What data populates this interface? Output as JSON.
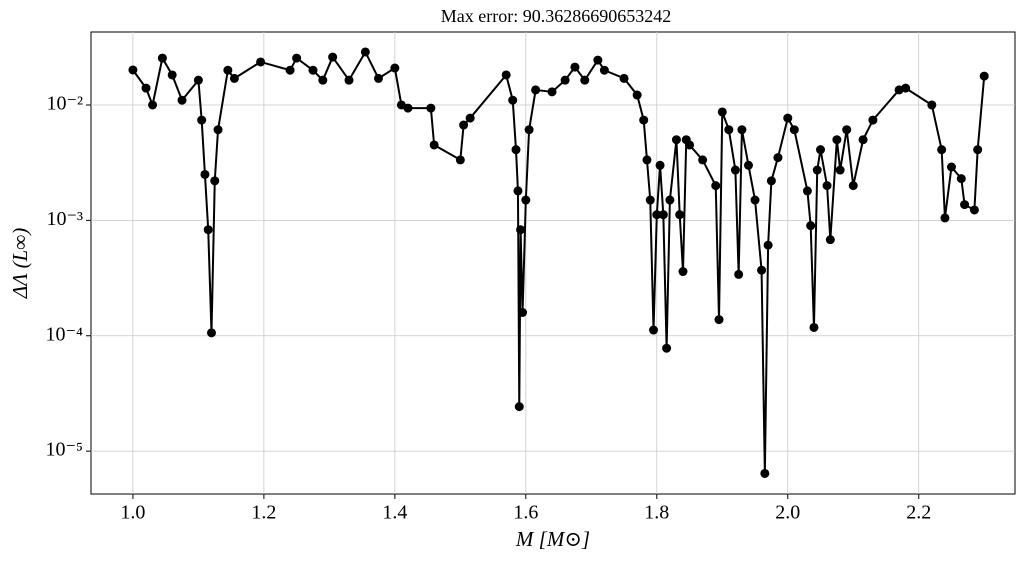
{
  "chart_data": {
    "type": "line",
    "title": "Max error: 90.36286690653242",
    "xlabel": "M [M⊙]",
    "ylabel": "ΔΛ (L∞)",
    "log_y": true,
    "grid": true,
    "color": "#000000",
    "markers": true,
    "xlim": [
      0.936,
      2.347
    ],
    "ylim": [
      4.25e-06,
      0.0429
    ],
    "xticks": [
      {
        "value": 1.0,
        "label": "1.0"
      },
      {
        "value": 1.2,
        "label": "1.2"
      },
      {
        "value": 1.4,
        "label": "1.4"
      },
      {
        "value": 1.6,
        "label": "1.6"
      },
      {
        "value": 1.8,
        "label": "1.8"
      },
      {
        "value": 2.0,
        "label": "2.0"
      },
      {
        "value": 2.2,
        "label": "2.2"
      }
    ],
    "yticks": [
      {
        "value": 1e-05,
        "label": "10⁻⁵"
      },
      {
        "value": 0.0001,
        "label": "10⁻⁴"
      },
      {
        "value": 0.001,
        "label": "10⁻³"
      },
      {
        "value": 0.01,
        "label": "10⁻²"
      }
    ],
    "x": [
      1.0,
      1.02,
      1.03,
      1.045,
      1.06,
      1.075,
      1.1,
      1.105,
      1.11,
      1.115,
      1.12,
      1.125,
      1.13,
      1.145,
      1.155,
      1.195,
      1.24,
      1.25,
      1.275,
      1.29,
      1.305,
      1.33,
      1.355,
      1.375,
      1.4,
      1.41,
      1.42,
      1.455,
      1.46,
      1.5,
      1.505,
      1.515,
      1.57,
      1.58,
      1.585,
      1.588,
      1.59,
      1.592,
      1.595,
      1.6,
      1.605,
      1.615,
      1.64,
      1.66,
      1.675,
      1.69,
      1.71,
      1.72,
      1.75,
      1.77,
      1.78,
      1.785,
      1.79,
      1.795,
      1.8,
      1.805,
      1.81,
      1.815,
      1.82,
      1.83,
      1.835,
      1.84,
      1.845,
      1.85,
      1.87,
      1.89,
      1.895,
      1.9,
      1.91,
      1.92,
      1.925,
      1.93,
      1.94,
      1.95,
      1.96,
      1.965,
      1.97,
      1.975,
      1.985,
      2.0,
      2.01,
      2.03,
      2.035,
      2.04,
      2.045,
      2.05,
      2.06,
      2.065,
      2.075,
      2.08,
      2.09,
      2.1,
      2.115,
      2.13,
      2.17,
      2.18,
      2.22,
      2.235,
      2.24,
      2.25,
      2.265,
      2.27,
      2.285,
      2.29,
      2.3
    ],
    "values": [
      0.0201,
      0.014,
      0.01,
      0.0255,
      0.0182,
      0.011,
      0.0164,
      0.0074,
      0.0025,
      0.00083,
      0.000106,
      0.0022,
      0.0061,
      0.02,
      0.017,
      0.0236,
      0.02,
      0.0255,
      0.02,
      0.0164,
      0.026,
      0.0164,
      0.0288,
      0.017,
      0.0209,
      0.01,
      0.0094,
      0.0094,
      0.0045,
      0.00334,
      0.0067,
      0.0077,
      0.0182,
      0.011,
      0.0041,
      0.0018,
      2.43e-05,
      0.00083,
      0.000159,
      0.0015,
      0.0061,
      0.0135,
      0.013,
      0.0164,
      0.0213,
      0.0164,
      0.0245,
      0.02,
      0.017,
      0.0122,
      0.0074,
      0.00334,
      0.0015,
      0.000112,
      0.00112,
      0.003,
      0.00112,
      7.8e-05,
      0.0015,
      0.005,
      0.00112,
      0.00036,
      0.005,
      0.0045,
      0.00334,
      0.002,
      0.000138,
      0.0087,
      0.0061,
      0.00273,
      0.00034,
      0.0061,
      0.003,
      0.0015,
      0.00037,
      6.4e-06,
      0.00061,
      0.0022,
      0.0035,
      0.0077,
      0.0061,
      0.0018,
      0.0009,
      0.000118,
      0.00273,
      0.0041,
      0.002,
      0.00068,
      0.005,
      0.00273,
      0.0061,
      0.002,
      0.005,
      0.0074,
      0.0135,
      0.014,
      0.01,
      0.0041,
      0.00105,
      0.0029,
      0.0023,
      0.00137,
      0.00123,
      0.0041,
      0.0178
    ]
  }
}
